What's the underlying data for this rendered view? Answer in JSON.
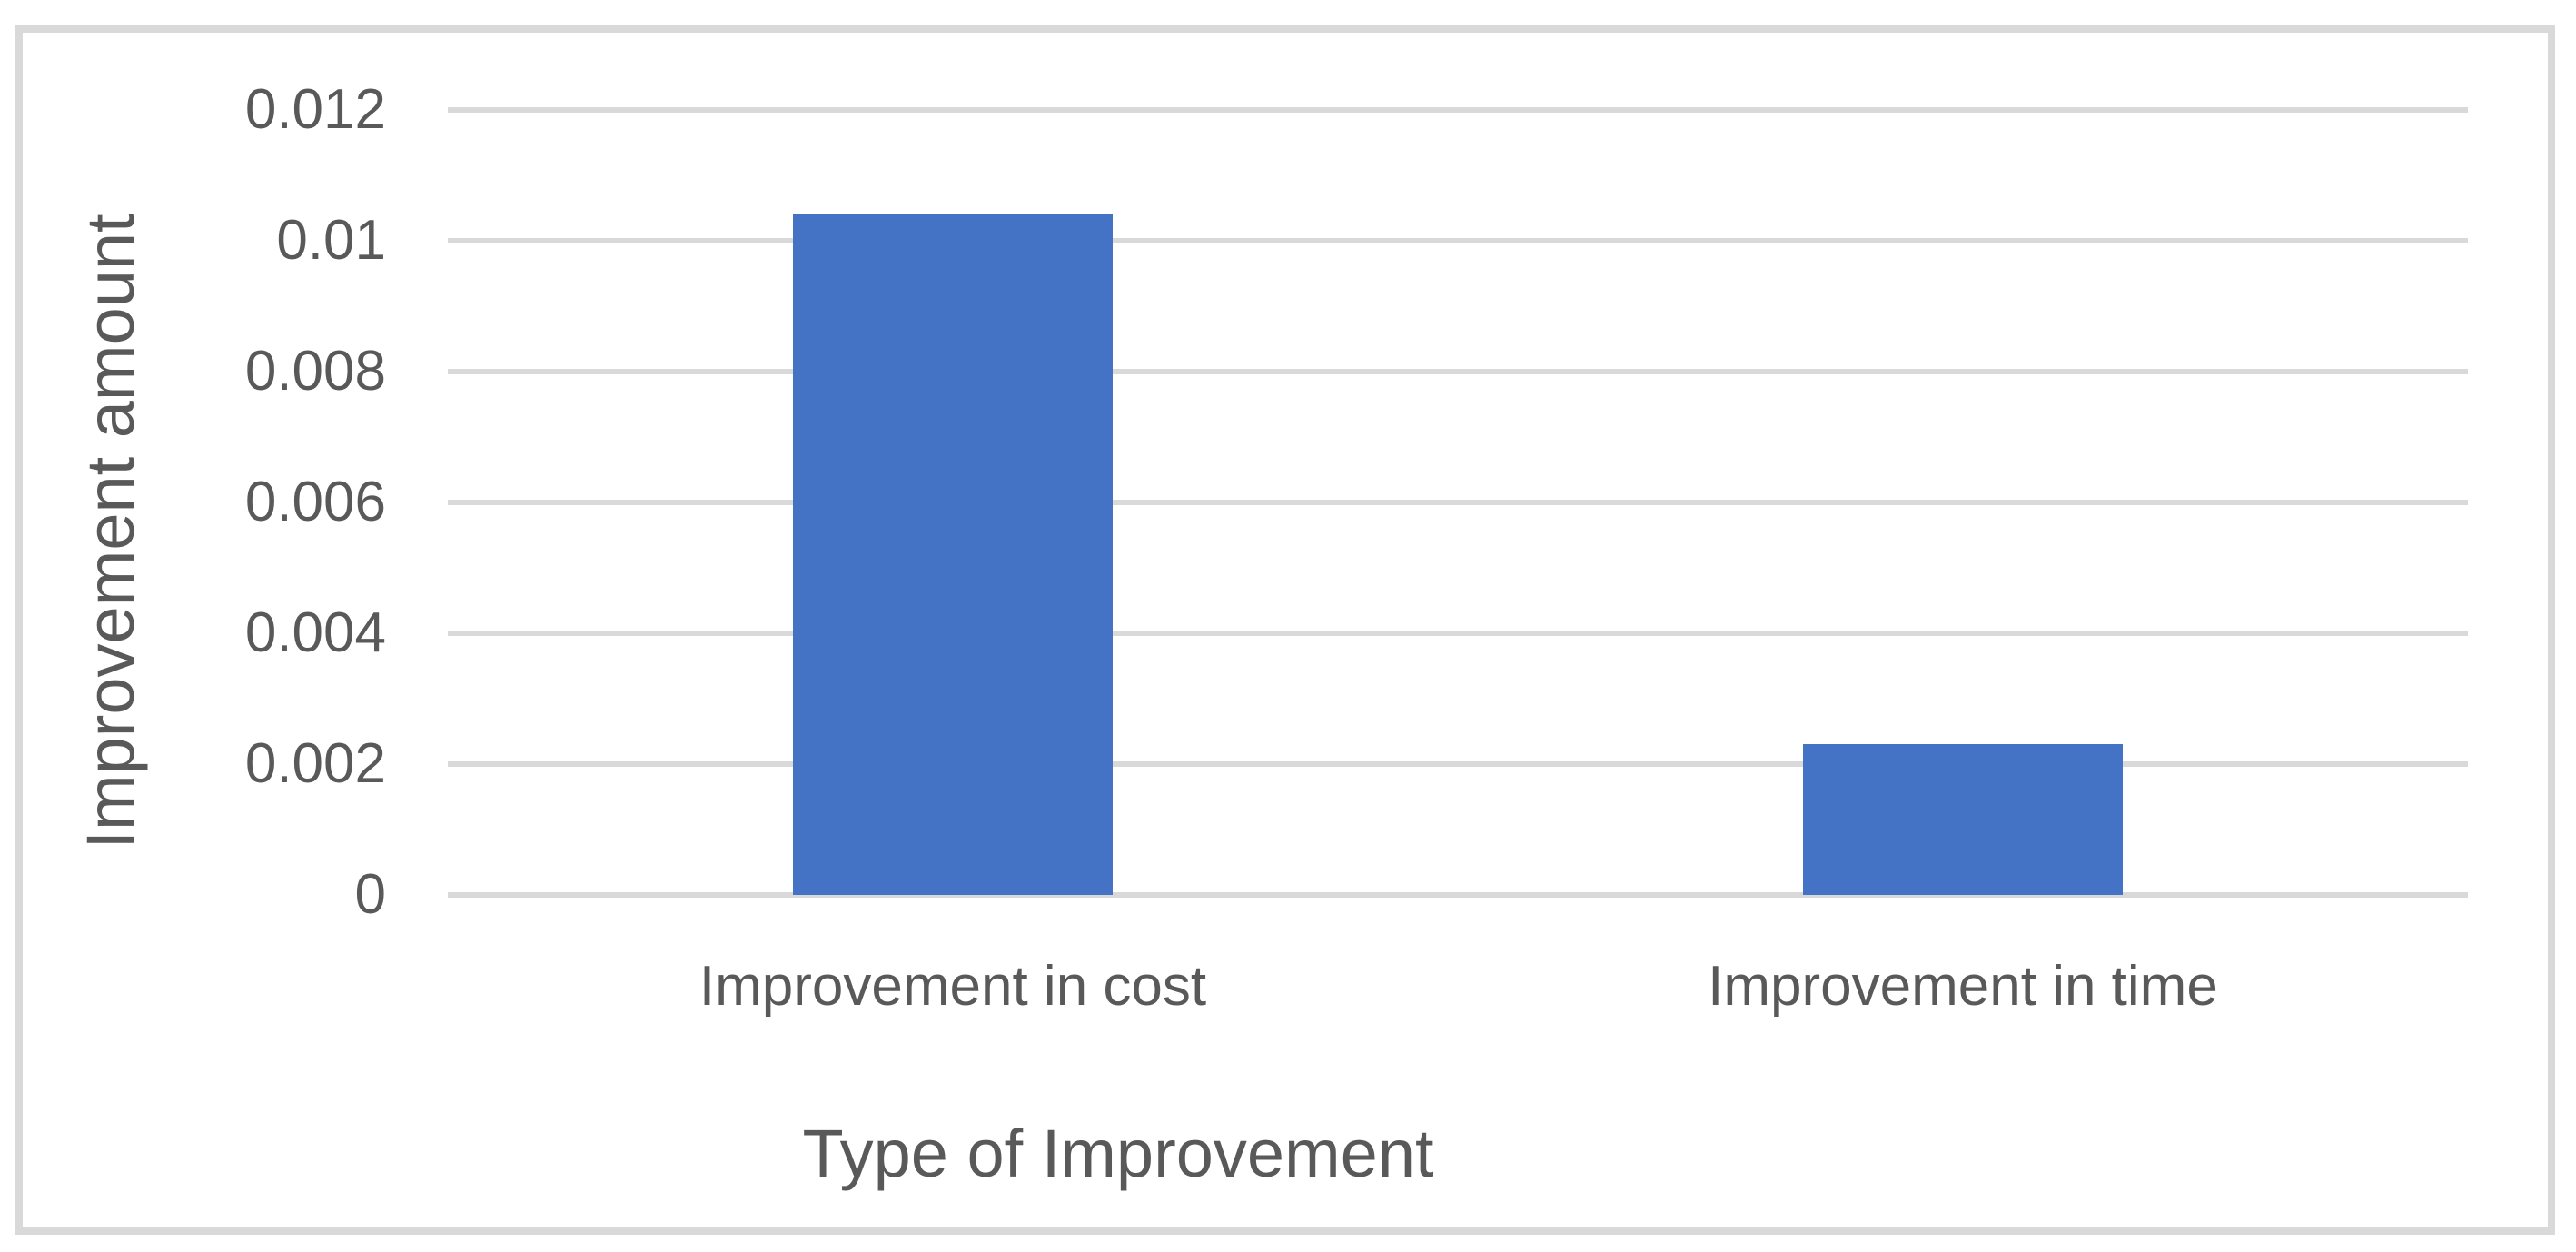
{
  "chart_data": {
    "type": "bar",
    "title": "",
    "categories": [
      "Improvement in cost",
      "Improvement in time"
    ],
    "values": [
      0.0104,
      0.0023
    ],
    "series_count": 1,
    "xlabel": "Type of Improvement",
    "ylabel": "Improvement amount",
    "ylim": [
      0,
      0.012
    ],
    "yticks": [
      {
        "value": 0,
        "label": "0"
      },
      {
        "value": 0.002,
        "label": "0.002"
      },
      {
        "value": 0.004,
        "label": "0.004"
      },
      {
        "value": 0.006,
        "label": "0.006"
      },
      {
        "value": 0.008,
        "label": "0.008"
      },
      {
        "value": 0.01,
        "label": "0.01"
      },
      {
        "value": 0.012,
        "label": "0.012"
      }
    ],
    "grid": "horizontal-on",
    "legend": "none",
    "colors": {
      "bar": "#4472C4",
      "gridline": "#D9D9D9",
      "frame_border": "#D9D9D9",
      "text": "#595959",
      "background": "#FFFFFF"
    }
  }
}
